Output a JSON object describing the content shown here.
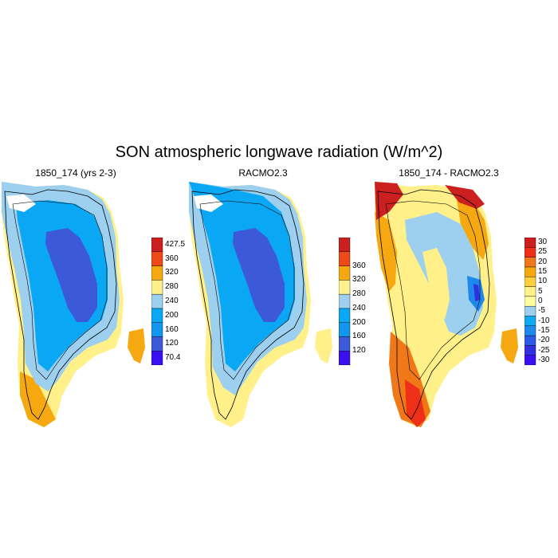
{
  "figure": {
    "title": "SON atmospheric longwave radiation (W/m^2)"
  },
  "panels": [
    {
      "title": "1850_174 (yrs 2-3)",
      "colorbar": {
        "colors": [
          "#3a10f0",
          "#3c5ad8",
          "#1296ee",
          "#0aa8f4",
          "#9dcfee",
          "#fff08a",
          "#f5a810",
          "#ee4a18",
          "#cc2020"
        ],
        "labels": [
          "70.4",
          "120",
          "160",
          "200",
          "240",
          "280",
          "320",
          "360",
          "427.5"
        ]
      }
    },
    {
      "title": "RACMO2.3",
      "colorbar": {
        "colors": [
          "#3a10f0",
          "#3c5ad8",
          "#1296ee",
          "#0aa8f4",
          "#9dcfee",
          "#fff08a",
          "#f5a810",
          "#ee4a18",
          "#cc2020"
        ],
        "labels": [
          "120",
          "160",
          "200",
          "240",
          "280",
          "320",
          "360"
        ]
      }
    },
    {
      "title": "1850_174 - RACMO2.3",
      "colorbar": {
        "colors": [
          "#3a10f0",
          "#3030e0",
          "#2a5ae6",
          "#1f88ec",
          "#10aaf2",
          "#9dcfee",
          "#ffffa0",
          "#fff08a",
          "#ffd040",
          "#f5a810",
          "#f07818",
          "#ee3018",
          "#cc2020"
        ],
        "labels": [
          "-30",
          "-25",
          "-20",
          "-15",
          "-10",
          "-5",
          "0",
          "5",
          "10",
          "15",
          "20",
          "25",
          "30"
        ]
      }
    }
  ]
}
